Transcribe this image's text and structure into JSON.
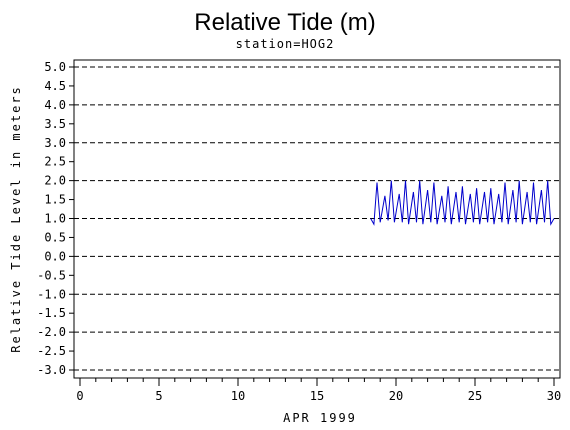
{
  "chart_data": {
    "type": "line",
    "title": "Relative Tide (m)",
    "subtitle": "station=HOG2",
    "xlabel": "APR 1999",
    "ylabel": "Relative Tide Level in meters",
    "xlim": [
      0,
      30
    ],
    "ylim": [
      -3.0,
      5.0
    ],
    "x_ticks": [
      "0",
      "5",
      "10",
      "15",
      "20",
      "25",
      "30"
    ],
    "y_ticks": [
      "5.0",
      "4.5",
      "4.0",
      "3.5",
      "3.0",
      "2.5",
      "2.0",
      "1.5",
      "1.0",
      "0.5",
      "0.0",
      "-0.5",
      "-1.0",
      "-1.5",
      "-2.0",
      "-2.5",
      "-3.0"
    ],
    "grid": "dashed horizontal at integer values",
    "series_color": "#0000cc",
    "series": [
      {
        "x": [
          18.4,
          18.6,
          18.8,
          19.0,
          19.3,
          19.5,
          19.7,
          19.9,
          20.2,
          20.4,
          20.6,
          20.8,
          21.1,
          21.3,
          21.5,
          21.7,
          22.0,
          22.2,
          22.4,
          22.6,
          22.9,
          23.1,
          23.3,
          23.5,
          23.8,
          24.0,
          24.2,
          24.4,
          24.7,
          24.9,
          25.1,
          25.3,
          25.6,
          25.8,
          26.0,
          26.2,
          26.5,
          26.7,
          26.9,
          27.1,
          27.4,
          27.6,
          27.8,
          28.0,
          28.3,
          28.5,
          28.7,
          28.9,
          29.2,
          29.4,
          29.6,
          29.8,
          30.0
        ],
        "y": [
          1.0,
          0.85,
          1.95,
          0.9,
          1.6,
          0.95,
          2.0,
          0.9,
          1.65,
          0.9,
          2.0,
          0.85,
          1.7,
          0.9,
          2.0,
          0.85,
          1.75,
          0.9,
          1.95,
          0.85,
          1.6,
          0.9,
          1.85,
          0.85,
          1.7,
          0.9,
          1.85,
          0.85,
          1.65,
          0.9,
          1.8,
          0.85,
          1.7,
          0.9,
          1.8,
          0.85,
          1.65,
          0.9,
          1.95,
          0.85,
          1.75,
          0.9,
          2.0,
          0.85,
          1.7,
          0.9,
          1.95,
          0.85,
          1.75,
          0.9,
          2.0,
          0.85,
          1.0
        ]
      }
    ]
  }
}
